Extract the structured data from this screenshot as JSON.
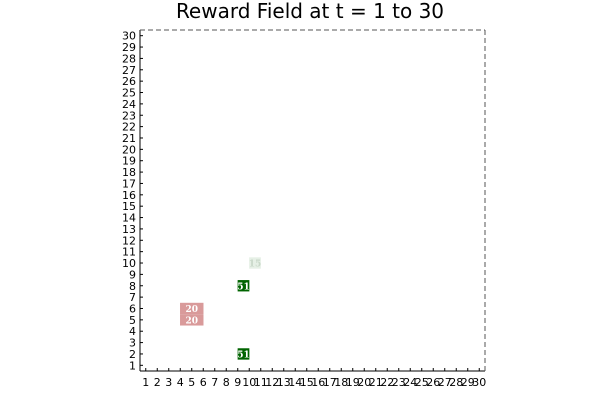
{
  "chart_data": {
    "type": "heatmap",
    "title": "Reward Field at t = 1 to 30",
    "xlabel": "",
    "ylabel": "",
    "xlim": [
      0.5,
      30.5
    ],
    "ylim": [
      0.5,
      30.5
    ],
    "x_ticks": [
      "1",
      "2",
      "3",
      "4",
      "5",
      "6",
      "7",
      "8",
      "9",
      "10",
      "11",
      "12",
      "13",
      "14",
      "15",
      "16",
      "17",
      "18",
      "19",
      "20",
      "21",
      "22",
      "23",
      "24",
      "25",
      "26",
      "27",
      "28",
      "29",
      "30"
    ],
    "y_ticks": [
      "1",
      "2",
      "3",
      "4",
      "5",
      "6",
      "7",
      "8",
      "9",
      "10",
      "11",
      "12",
      "13",
      "14",
      "15",
      "16",
      "17",
      "18",
      "19",
      "20",
      "21",
      "22",
      "23",
      "24",
      "25",
      "26",
      "27",
      "28",
      "29",
      "30"
    ],
    "grid": false,
    "cells": [
      {
        "x": 9.5,
        "y": 2,
        "w": 1,
        "h": 1,
        "label": "51",
        "color": "#006400",
        "text_color": "#ffffff"
      },
      {
        "x": 9.5,
        "y": 8,
        "w": 1,
        "h": 1,
        "label": "51",
        "color": "#006400",
        "text_color": "#ffffff"
      },
      {
        "x": 10.5,
        "y": 10,
        "w": 1,
        "h": 1,
        "label": "15",
        "color": "#e6f0e6",
        "text_color": "#c9d8c9"
      },
      {
        "x": 5,
        "y": 6,
        "w": 2,
        "h": 1,
        "label": "20",
        "color": "#d99a9a",
        "text_color": "#ffffff"
      },
      {
        "x": 5,
        "y": 5,
        "w": 2,
        "h": 1,
        "label": "20",
        "color": "#d99a9a",
        "text_color": "#ffffff"
      }
    ]
  }
}
